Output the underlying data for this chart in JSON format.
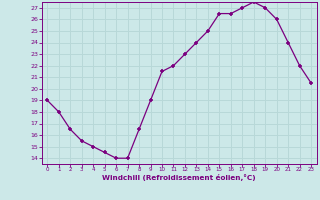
{
  "x": [
    0,
    1,
    2,
    3,
    4,
    5,
    6,
    7,
    8,
    9,
    10,
    11,
    12,
    13,
    14,
    15,
    16,
    17,
    18,
    19,
    20,
    21,
    22,
    23
  ],
  "y": [
    19,
    18,
    16.5,
    15.5,
    15,
    14.5,
    14,
    14,
    16.5,
    19,
    21.5,
    22,
    23,
    24,
    25,
    26.5,
    26.5,
    27,
    27.5,
    27,
    26,
    24,
    22,
    20.5
  ],
  "line_color": "#7b0080",
  "marker": "+",
  "marker_color": "#7b0080",
  "bg_color": "#cce8e8",
  "grid_color": "#b8d8d8",
  "xlabel": "Windchill (Refroidissement éolien,°C)",
  "tick_color": "#7b0080",
  "ylim": [
    14,
    27
  ],
  "xlim": [
    0,
    23
  ],
  "yticks": [
    14,
    15,
    16,
    17,
    18,
    19,
    20,
    21,
    22,
    23,
    24,
    25,
    26,
    27
  ],
  "xticks": [
    0,
    1,
    2,
    3,
    4,
    5,
    6,
    7,
    8,
    9,
    10,
    11,
    12,
    13,
    14,
    15,
    16,
    17,
    18,
    19,
    20,
    21,
    22,
    23
  ]
}
